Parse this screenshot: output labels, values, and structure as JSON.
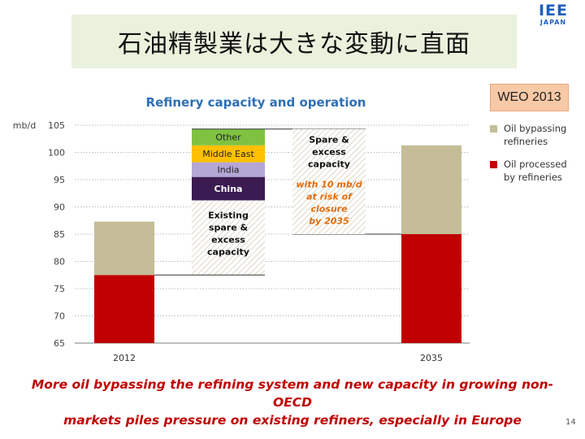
{
  "slide": {
    "title": "石油精製業は大きな変動に直面",
    "logo_main": "IEE",
    "logo_sub": "JAPAN",
    "badge": "WEO 2013",
    "footnote_line1": "More oil bypassing the refining system and new capacity in growing non-OECD",
    "footnote_line2": "markets piles pressure on existing refiners, especially in Europe",
    "page_number": "14"
  },
  "colors": {
    "processed": "#c00000",
    "bypassing": "#c4bd97",
    "other": "#7fc241",
    "middle_east": "#ffc000",
    "india": "#b4a7d6",
    "china": "#3b1c52"
  },
  "chart_data": {
    "type": "bar",
    "title": "Refinery capacity and operation",
    "ylabel": "mb/d",
    "ylim": [
      65,
      105
    ],
    "yticks": [
      65,
      70,
      75,
      80,
      85,
      90,
      95,
      100,
      105
    ],
    "grid": true,
    "legend_position": "right",
    "legend": [
      "Oil bypassing refineries",
      "Oil processed by refineries"
    ],
    "categories": [
      "2012",
      "2035"
    ],
    "series": [
      {
        "name": "Oil processed by refineries",
        "values": [
          77.5,
          85.0
        ]
      },
      {
        "name": "Oil bypassing refineries",
        "values": [
          9.8,
          16.3
        ]
      }
    ],
    "waterfall": [
      {
        "label": "Existing spare & excess capacity",
        "from": 77.5,
        "to": 91.2
      },
      {
        "label": "China",
        "from": 91.2,
        "to": 95.5
      },
      {
        "label": "India",
        "from": 95.5,
        "to": 98.2
      },
      {
        "label": "Middle East",
        "from": 98.2,
        "to": 101.3
      },
      {
        "label": "Other",
        "from": 101.3,
        "to": 104.3
      },
      {
        "label": "Spare & excess capacity",
        "from": 85.0,
        "to": 104.3,
        "annotation": "with 10 mb/d at risk of closure by 2035"
      }
    ]
  }
}
